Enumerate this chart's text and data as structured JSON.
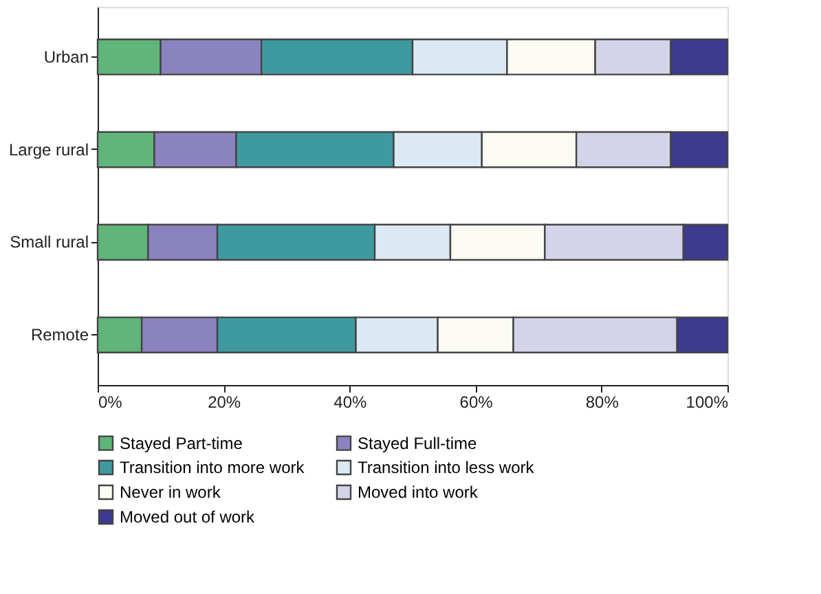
{
  "chart_data": {
    "type": "bar",
    "orientation": "horizontal",
    "stacked": true,
    "categories": [
      "Urban",
      "Large rural",
      "Small rural",
      "Remote"
    ],
    "series": [
      {
        "name": "Stayed Part-time",
        "color": "#5fb57a",
        "values": [
          10,
          9,
          8,
          7
        ]
      },
      {
        "name": "Stayed Full-time",
        "color": "#8b82c0",
        "values": [
          16,
          13,
          11,
          12
        ]
      },
      {
        "name": "Transition into more work",
        "color": "#3f9aa0",
        "values": [
          24,
          25,
          25,
          22
        ]
      },
      {
        "name": "Transition into less work",
        "color": "#dde9f2",
        "values": [
          15,
          14,
          12,
          13
        ]
      },
      {
        "name": "Never in work",
        "color": "#fbfbf4",
        "values": [
          14,
          15,
          15,
          12
        ]
      },
      {
        "name": "Moved into work",
        "color": "#d3d3ea",
        "values": [
          12,
          15,
          22,
          26
        ]
      },
      {
        "name": "Moved out of work",
        "color": "#3d3a8f",
        "values": [
          9,
          9,
          7,
          8
        ]
      }
    ],
    "xlim": [
      0,
      100
    ],
    "xticks": [
      {
        "value": 0,
        "label": "0%"
      },
      {
        "value": 20,
        "label": "20%"
      },
      {
        "value": 40,
        "label": "40%"
      },
      {
        "value": 60,
        "label": "60%"
      },
      {
        "value": 80,
        "label": "80%"
      },
      {
        "value": 100,
        "label": "100%"
      }
    ],
    "grid": false,
    "legend": "bottom"
  }
}
